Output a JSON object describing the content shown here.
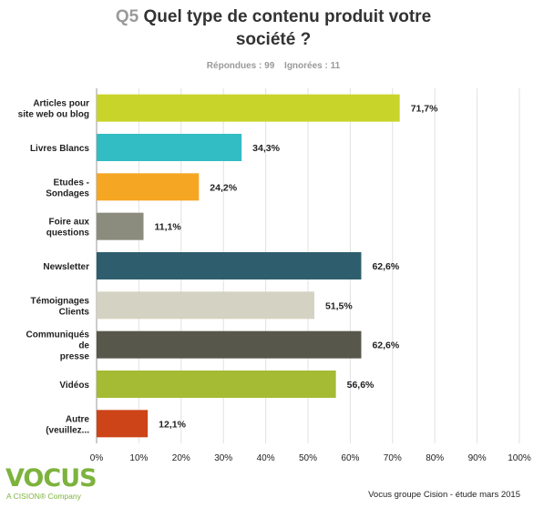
{
  "title": {
    "number": "Q5",
    "line1": "Quel type de contenu produit votre",
    "line2": "société ?"
  },
  "stats": {
    "answered": "Répondues : 99",
    "skipped": "Ignorées : 11"
  },
  "chart_data": {
    "type": "bar",
    "orientation": "horizontal",
    "categories": [
      [
        "Articles pour",
        "site web ou blog"
      ],
      [
        "Livres Blancs"
      ],
      [
        "Etudes -",
        "Sondages"
      ],
      [
        "Foire aux",
        "questions"
      ],
      [
        "Newsletter"
      ],
      [
        "Témoignages",
        "Clients"
      ],
      [
        "Communiqués",
        "de",
        "presse"
      ],
      [
        "Vidéos"
      ],
      [
        "Autre",
        "(veuillez..."
      ]
    ],
    "values": [
      71.7,
      34.3,
      24.2,
      11.1,
      62.6,
      51.5,
      62.6,
      56.6,
      12.1
    ],
    "value_labels": [
      "71,7%",
      "34,3%",
      "24,2%",
      "11,1%",
      "62,6%",
      "51,5%",
      "62,6%",
      "56,6%",
      "12,1%"
    ],
    "colors": [
      "#c9d42a",
      "#32bcc4",
      "#f5a623",
      "#8b8c7e",
      "#2e5e6e",
      "#d4d2c2",
      "#58574b",
      "#a4bb33",
      "#cc4418"
    ],
    "xlim": [
      0,
      100
    ],
    "xticks": [
      "0%",
      "10%",
      "20%",
      "30%",
      "40%",
      "50%",
      "60%",
      "70%",
      "80%",
      "90%",
      "100%"
    ],
    "grid": true
  },
  "brand": {
    "logo_text": "VOCUS",
    "logo_sub": "A CISION® Company"
  },
  "footer": "Vocus groupe Cision - étude mars 2015"
}
